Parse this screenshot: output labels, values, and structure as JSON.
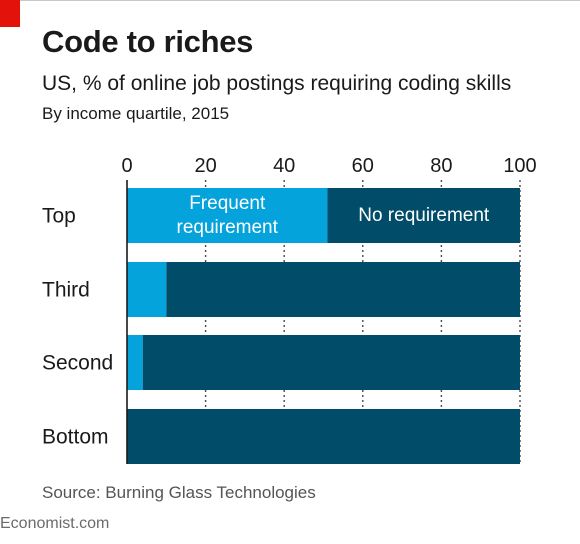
{
  "title": "Code to riches",
  "subtitle": "US, % of online job postings requiring coding skills",
  "subtitle2": "By income quartile, 2015",
  "source": "Source: Burning Glass Technologies",
  "footer": "Economist.com",
  "colors": {
    "frequent": "#05a3dc",
    "no_requirement": "#014d69",
    "brand_red": "#e3120b"
  },
  "chart_data": {
    "type": "bar",
    "orientation": "horizontal",
    "stacked": true,
    "categories": [
      "Top",
      "Third",
      "Second",
      "Bottom"
    ],
    "series": [
      {
        "name": "Frequent requirement",
        "values": [
          51,
          10,
          4,
          0
        ]
      },
      {
        "name": "No requirement",
        "values": [
          49,
          90,
          96,
          100
        ]
      }
    ],
    "xlim": [
      0,
      100
    ],
    "xticks": [
      0,
      20,
      40,
      60,
      80,
      100
    ],
    "xaxis_position": "top",
    "grid": "dotted vertical"
  }
}
